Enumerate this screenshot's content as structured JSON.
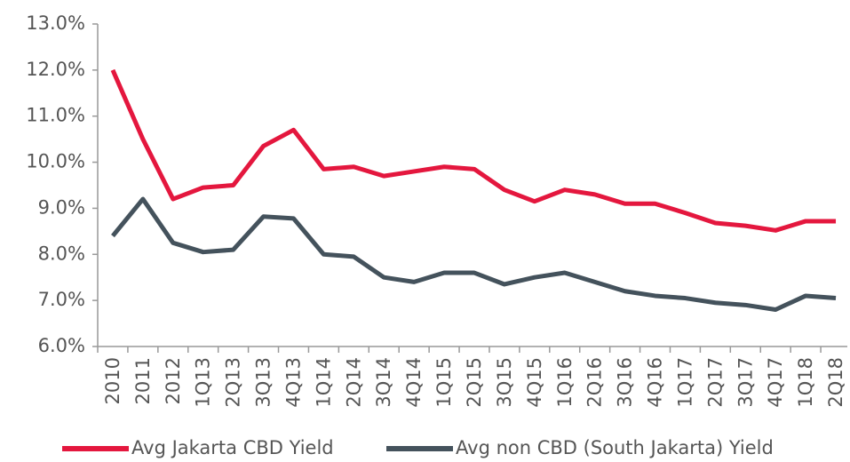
{
  "chart_data": {
    "type": "line",
    "categories": [
      "2010",
      "2011",
      "2012",
      "1Q13",
      "2Q13",
      "3Q13",
      "4Q13",
      "1Q14",
      "2Q14",
      "3Q14",
      "4Q14",
      "1Q15",
      "2Q15",
      "3Q15",
      "4Q15",
      "1Q16",
      "2Q16",
      "3Q16",
      "4Q16",
      "1Q17",
      "2Q17",
      "3Q17",
      "4Q17",
      "1Q18",
      "2Q18"
    ],
    "series": [
      {
        "name": "Avg Jakarta CBD Yield",
        "color": "#e4173e",
        "values": [
          12.0,
          10.5,
          9.2,
          9.45,
          9.5,
          10.35,
          10.7,
          9.85,
          9.9,
          9.7,
          9.8,
          9.9,
          9.85,
          9.4,
          9.15,
          9.4,
          9.3,
          9.1,
          9.1,
          8.9,
          8.68,
          8.62,
          8.52,
          8.72,
          8.72
        ]
      },
      {
        "name": "Avg non CBD (South Jakarta) Yield",
        "color": "#44525c",
        "values": [
          8.4,
          9.2,
          8.25,
          8.05,
          8.1,
          8.82,
          8.78,
          8.0,
          7.95,
          7.5,
          7.4,
          7.6,
          7.6,
          7.35,
          7.5,
          7.6,
          7.4,
          7.2,
          7.1,
          7.05,
          6.95,
          6.9,
          6.8,
          7.1,
          7.05
        ]
      }
    ],
    "ylim": [
      6,
      13
    ],
    "yticks": [
      {
        "value": 6,
        "label": "6.0%"
      },
      {
        "value": 7,
        "label": "7.0%"
      },
      {
        "value": 8,
        "label": "8.0%"
      },
      {
        "value": 9,
        "label": "9.0%"
      },
      {
        "value": 10,
        "label": "10.0%"
      },
      {
        "value": 11,
        "label": "11.0%"
      },
      {
        "value": 12,
        "label": "12.0%"
      },
      {
        "value": 13,
        "label": "13.0%"
      }
    ],
    "grid": false,
    "legend": "bottom"
  }
}
